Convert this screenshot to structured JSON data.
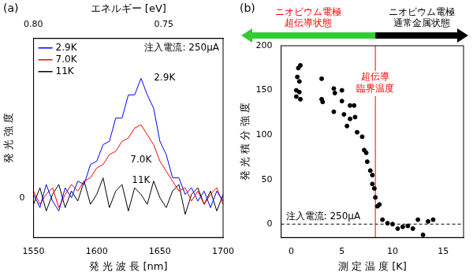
{
  "chart_data": [
    {
      "type": "line",
      "label": "(a)",
      "x_label": "発 光 波 長 [nm]",
      "y_label": "発 光 強 度",
      "x2_label": "エネルギー [eV]",
      "x": [
        1550,
        1555,
        1560,
        1565,
        1570,
        1575,
        1580,
        1585,
        1590,
        1595,
        1600,
        1605,
        1610,
        1615,
        1620,
        1625,
        1630,
        1635,
        1640,
        1645,
        1650,
        1655,
        1660,
        1665,
        1670,
        1675,
        1680,
        1685,
        1690,
        1695,
        1700
      ],
      "series": [
        {
          "name": "2.9K",
          "color": "#0000ff",
          "values": [
            0.1,
            -0.3,
            0.4,
            -0.1,
            -0.4,
            0.3,
            0.0,
            0.5,
            0.4,
            1.0,
            1.1,
            1.6,
            1.7,
            2.4,
            2.4,
            3.1,
            3.1,
            3.6,
            3.1,
            2.7,
            1.7,
            1.3,
            0.6,
            0.6,
            0.1,
            0.3,
            -0.1,
            0.2,
            -0.3,
            0.2,
            -0.1
          ]
        },
        {
          "name": "7.0K",
          "color": "#ff0000",
          "values": [
            0.2,
            -0.2,
            0.1,
            0.3,
            -0.3,
            0.1,
            0.4,
            0.2,
            0.5,
            0.6,
            0.9,
            1.0,
            1.3,
            1.4,
            1.7,
            1.8,
            2.1,
            2.2,
            1.9,
            1.6,
            1.1,
            0.8,
            0.5,
            0.2,
            0.3,
            -0.1,
            0.2,
            -0.2,
            0.1,
            0.3,
            -0.2
          ]
        },
        {
          "name": "11K",
          "color": "#000000",
          "values": [
            -0.2,
            0.3,
            -0.4,
            0.1,
            0.4,
            -0.3,
            0.2,
            -0.1,
            0.5,
            -0.2,
            0.1,
            0.6,
            -0.3,
            0.2,
            0.4,
            -0.4,
            0.3,
            0.1,
            -0.2,
            0.5,
            0.0,
            -0.3,
            0.2,
            0.4,
            -0.5,
            0.1,
            0.3,
            -0.2,
            0.2,
            -0.4,
            0.1
          ]
        }
      ],
      "xlim": [
        1550,
        1700
      ],
      "xticks": [
        1550,
        1600,
        1650,
        1700
      ],
      "x2ticks": [
        {
          "value": 0.8,
          "label": "0.80"
        },
        {
          "value": 0.75,
          "label": "0.75"
        }
      ],
      "ylim": [
        -1.2,
        4.8
      ],
      "yticks": [
        0
      ],
      "annotation": "注入電流: 250μA",
      "legend": "upper left",
      "grid": false
    },
    {
      "type": "scatter",
      "label": "(b)",
      "x_label": "測 定 温 度 [K]",
      "y_label": "発 光 積 分 強 度",
      "x": [
        0.5,
        0.5,
        0.6,
        0.7,
        0.8,
        0.8,
        0.9,
        0.9,
        3.0,
        3.0,
        3.1,
        4.2,
        4.3,
        4.2,
        5.0,
        5.0,
        5.2,
        5.5,
        5.8,
        5.8,
        6.2,
        6.3,
        6.5,
        7.0,
        7.2,
        7.4,
        7.5,
        7.8,
        8.0,
        8.0,
        8.2,
        8.3,
        8.5,
        8.7,
        9.0,
        9.5,
        10.0,
        10.5,
        11.0,
        11.5,
        12.0,
        12.5,
        13.0,
        13.5,
        14.0
      ],
      "values": [
        150,
        143,
        165,
        175,
        160,
        148,
        178,
        140,
        163,
        140,
        137,
        152,
        147,
        126,
        150,
        138,
        123,
        110,
        133,
        118,
        133,
        120,
        103,
        98,
        83,
        80,
        70,
        60,
        55,
        45,
        40,
        30,
        20,
        22,
        5,
        1,
        0,
        -5,
        -3,
        -2,
        -5,
        5,
        -12,
        3,
        5
      ],
      "color": "#000000",
      "xlim": [
        -1,
        17
      ],
      "xticks": [
        0,
        5,
        10,
        15
      ],
      "ylim": [
        -15,
        200
      ],
      "yticks": [
        0,
        50,
        100,
        150,
        200
      ],
      "annotation": "注入電流: 250μA",
      "grid": false,
      "vline": {
        "x": 8.3,
        "label": [
          "超伝導",
          "臨界温度"
        ],
        "color": "#ff0000"
      },
      "hline": {
        "y": 0,
        "line_style": "dashed"
      },
      "regions": [
        {
          "label": [
            "ニオビウム電極",
            "超伝導状態"
          ],
          "color": "#33cc33"
        },
        {
          "label": [
            "ニオビウム電極",
            "通常金属状態"
          ],
          "color": "#000000"
        }
      ]
    }
  ]
}
